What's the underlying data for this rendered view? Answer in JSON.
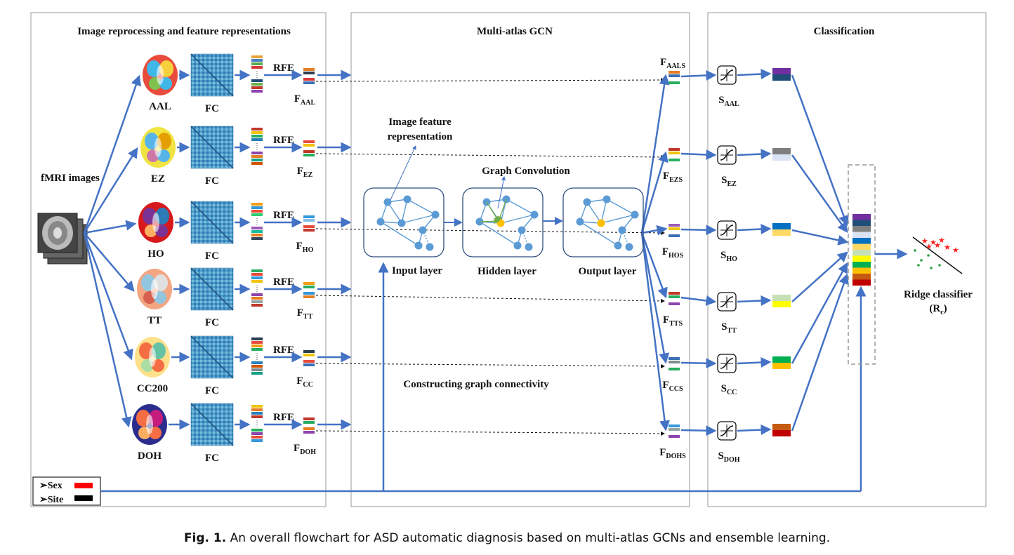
{
  "panels": {
    "left_title": "Image reprocessing and feature representations",
    "middle_title": "Multi-atlas GCN",
    "right_title": "Classification"
  },
  "input": {
    "label": "fMRI images"
  },
  "fc_label": "FC",
  "rfe_label": "RFE",
  "atlases": [
    {
      "name": "AAL",
      "feature": "F",
      "feature_sub": "AAL",
      "out": "F",
      "out_sub": "AALS",
      "s": "S",
      "s_sub": "AAL"
    },
    {
      "name": "EZ",
      "feature": "F",
      "feature_sub": "EZ",
      "out": "F",
      "out_sub": "EZS",
      "s": "S",
      "s_sub": "EZ"
    },
    {
      "name": "HO",
      "feature": "F",
      "feature_sub": "HO",
      "out": "F",
      "out_sub": "HOS",
      "s": "S",
      "s_sub": "HO"
    },
    {
      "name": "TT",
      "feature": "F",
      "feature_sub": "TT",
      "out": "F",
      "out_sub": "TTS",
      "s": "S",
      "s_sub": "TT"
    },
    {
      "name": "CC200",
      "feature": "F",
      "feature_sub": "CC",
      "out": "F",
      "out_sub": "CCS",
      "s": "S",
      "s_sub": "CC"
    },
    {
      "name": "DOH",
      "feature": "F",
      "feature_sub": "DOH",
      "out": "F",
      "out_sub": "DOHS",
      "s": "S",
      "s_sub": "DOH"
    }
  ],
  "gcn": {
    "image_feature_line1": "Image feature",
    "image_feature_line2": "representation",
    "graph_convolution": "Graph Convolution",
    "input_layer": "Input layer",
    "hidden_layer": "Hidden layer",
    "output_layer": "Output layer",
    "constructing": "Constructing graph connectivity"
  },
  "phenotype": {
    "sex": "➢Sex",
    "site": "➢Site"
  },
  "classifier": {
    "line1": "Ridge classifier",
    "line2_main": "(R",
    "line2_sub": "c",
    "line2_end": ")"
  },
  "caption": {
    "label": "Fig. 1.",
    "text": " An overall flowchart for ASD automatic diagnosis based on multi-atlas GCNs and ensemble learning."
  },
  "colors": {
    "arrow": "#4472c4",
    "node": "#5b9bd5",
    "highlight": "#ffc000",
    "green_arrow": "#70ad47",
    "sex": "#ff0000",
    "site": "#000000"
  }
}
